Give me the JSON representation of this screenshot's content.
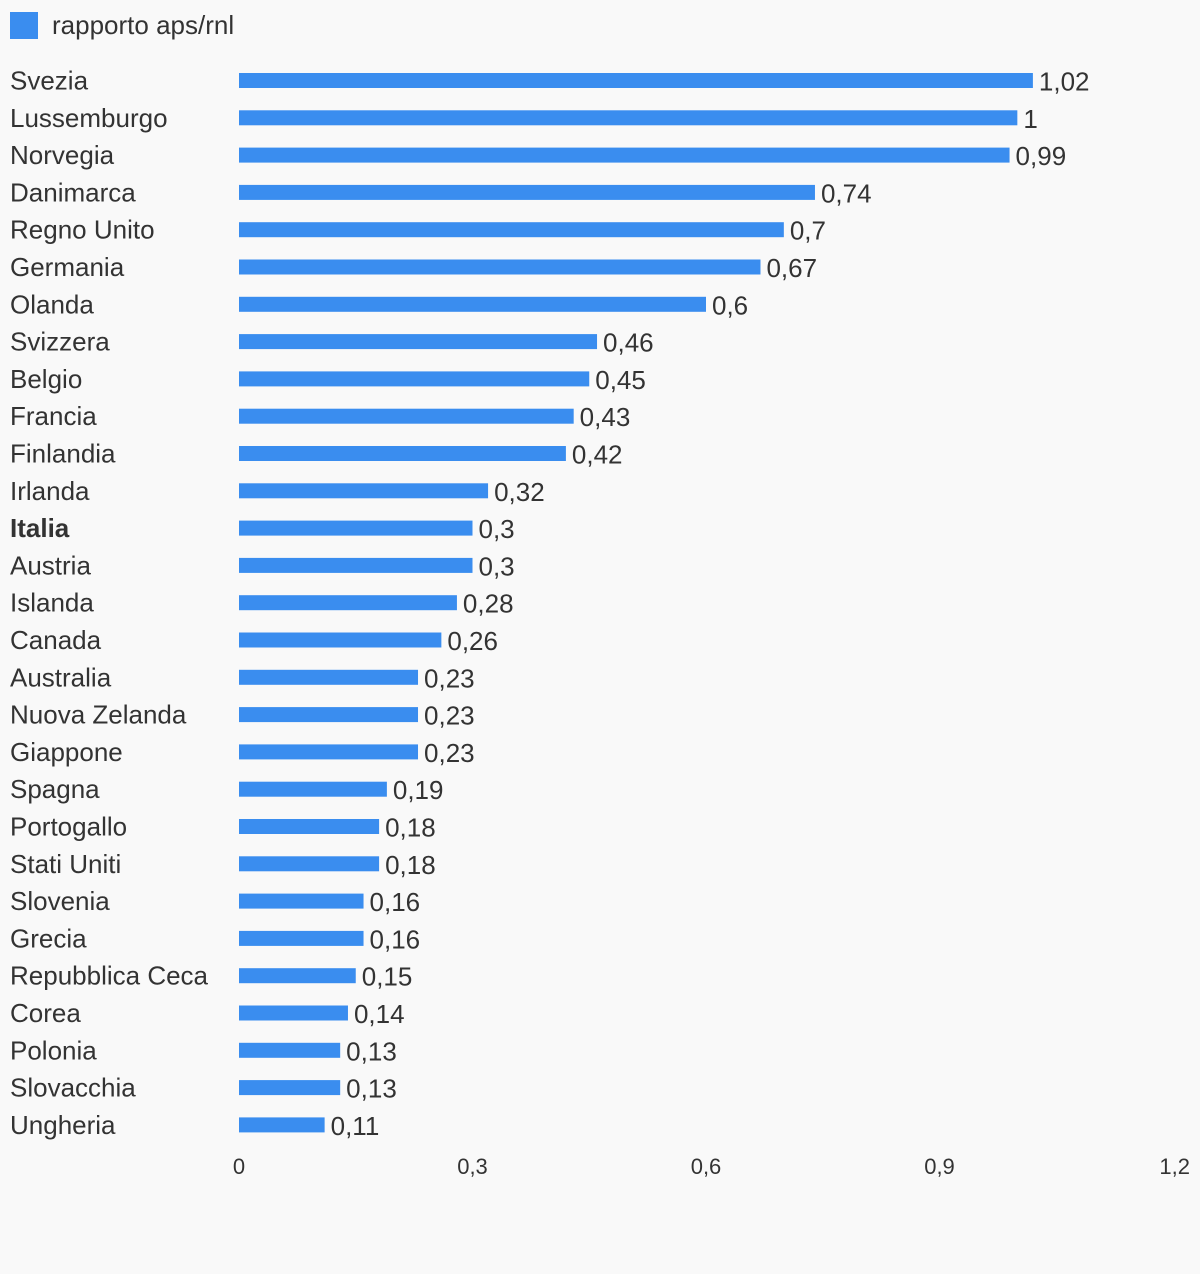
{
  "chart_data": {
    "type": "bar",
    "orientation": "horizontal",
    "series": [
      {
        "name": "rapporto aps/rnl",
        "color": "#3a8def",
        "values": [
          1.02,
          1,
          0.99,
          0.74,
          0.7,
          0.67,
          0.6,
          0.46,
          0.45,
          0.43,
          0.42,
          0.32,
          0.3,
          0.3,
          0.28,
          0.26,
          0.23,
          0.23,
          0.23,
          0.19,
          0.18,
          0.18,
          0.16,
          0.16,
          0.15,
          0.14,
          0.13,
          0.13,
          0.11
        ]
      }
    ],
    "categories": [
      "Svezia",
      "Lussemburgo",
      "Norvegia",
      "Danimarca",
      "Regno Unito",
      "Germania",
      "Olanda",
      "Svizzera",
      "Belgio",
      "Francia",
      "Finlandia",
      "Irlanda",
      "Italia",
      "Austria",
      "Islanda",
      "Canada",
      "Australia",
      "Nuova Zelanda",
      "Giappone",
      "Spagna",
      "Portogallo",
      "Stati Uniti",
      "Slovenia",
      "Grecia",
      "Repubblica Ceca",
      "Corea",
      "Polonia",
      "Slovacchia",
      "Ungheria"
    ],
    "data_labels": [
      "1,02",
      "1",
      "0,99",
      "0,74",
      "0,7",
      "0,67",
      "0,6",
      "0,46",
      "0,45",
      "0,43",
      "0,42",
      "0,32",
      "0,3",
      "0,3",
      "0,28",
      "0,26",
      "0,23",
      "0,23",
      "0,23",
      "0,19",
      "0,18",
      "0,18",
      "0,16",
      "0,16",
      "0,15",
      "0,14",
      "0,13",
      "0,13",
      "0,11"
    ],
    "highlight_category": "Italia",
    "xlim": [
      0,
      1.2
    ],
    "x_ticks": [
      0,
      0.3,
      0.6,
      0.9,
      1.2
    ],
    "x_tick_labels": [
      "0",
      "0,3",
      "0,6",
      "0,9",
      "1,2"
    ],
    "grid": false,
    "legend_position": "top-left",
    "title": "",
    "xlabel": "",
    "ylabel": ""
  }
}
